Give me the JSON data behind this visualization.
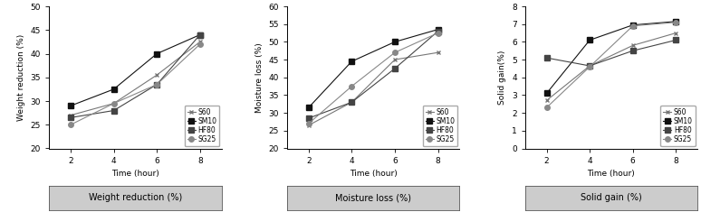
{
  "time": [
    2,
    4,
    6,
    8
  ],
  "wr": {
    "S60": [
      27.0,
      29.5,
      35.5,
      42.5
    ],
    "SM10": [
      29.0,
      32.5,
      40.0,
      44.0
    ],
    "HF80": [
      26.5,
      28.0,
      33.5,
      44.0
    ],
    "SG25": [
      25.0,
      29.5,
      33.5,
      42.0
    ]
  },
  "ml": {
    "S60": [
      26.5,
      33.0,
      45.0,
      47.0
    ],
    "SM10": [
      31.5,
      44.5,
      50.0,
      53.5
    ],
    "HF80": [
      28.5,
      33.0,
      42.5,
      53.0
    ],
    "SG25": [
      27.0,
      37.5,
      47.0,
      52.5
    ]
  },
  "sg": {
    "S60": [
      2.7,
      4.65,
      5.8,
      6.5
    ],
    "SM10": [
      3.1,
      6.1,
      6.95,
      7.15
    ],
    "HF80": [
      5.1,
      4.65,
      5.5,
      6.1
    ],
    "SG25": [
      2.3,
      4.6,
      6.9,
      7.1
    ]
  },
  "wr_ylim": [
    20,
    50
  ],
  "ml_ylim": [
    20,
    60
  ],
  "sg_ylim": [
    0,
    8
  ],
  "wr_yticks": [
    20,
    25,
    30,
    35,
    40,
    45,
    50
  ],
  "ml_yticks": [
    20,
    25,
    30,
    35,
    40,
    45,
    50,
    55,
    60
  ],
  "sg_yticks": [
    0,
    1,
    2,
    3,
    4,
    5,
    6,
    7,
    8
  ],
  "xticks": [
    2,
    4,
    6,
    8
  ],
  "legend_labels": [
    "S60",
    "SM10",
    "HF80",
    "SG25"
  ],
  "markers": [
    "x",
    "s",
    "s",
    "o"
  ],
  "colors": [
    "#777777",
    "#111111",
    "#444444",
    "#888888"
  ],
  "xlabel": "Time (hour)",
  "wr_ylabel": "Weight reduction (%)",
  "ml_ylabel": "Moisture loss (%)",
  "sg_ylabel": "Solid gain(%)",
  "footer_labels": [
    "Weight reduction (%)",
    "Moisture loss (%)",
    "Solid gain (%)"
  ],
  "footer_bg": "#cccccc",
  "fontsize": 6.5,
  "legend_fontsize": 5.5
}
